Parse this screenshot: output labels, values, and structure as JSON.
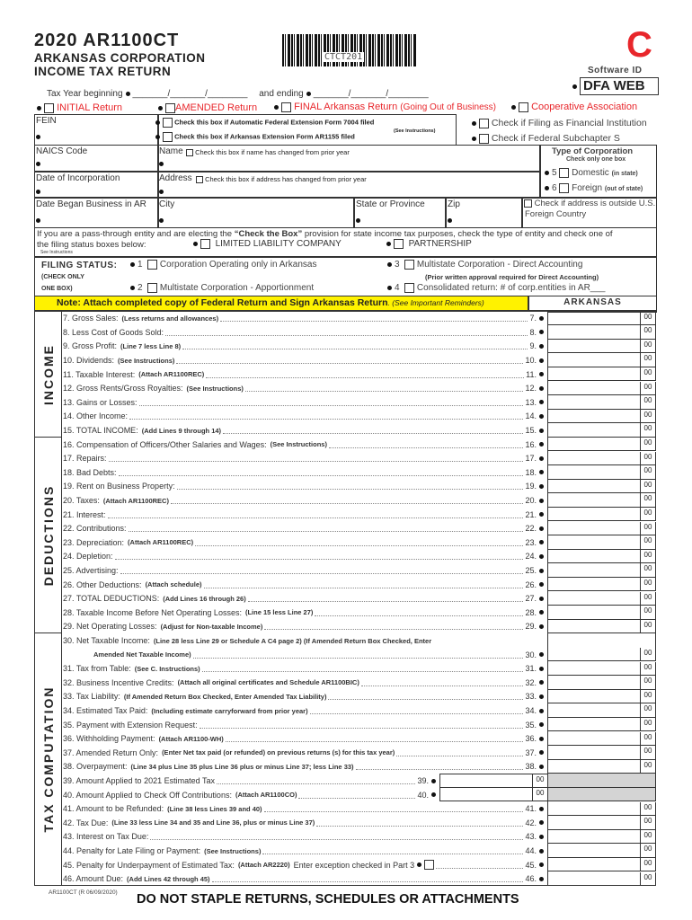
{
  "header": {
    "year_form": "2020 AR1100CT",
    "title1": "ARKANSAS CORPORATION",
    "title2": "INCOME TAX RETURN",
    "barcode_text": "CTCT201",
    "form_letter": "C",
    "software_id_label": "Software ID",
    "software_id": "DFA WEB",
    "tax_year_beginning": "Tax Year beginning",
    "date_blank": "_______/_______/________",
    "and_ending": "and ending"
  },
  "returns": {
    "initial": "INITIAL Return",
    "amended": "AMENDED Return",
    "final": "FINAL Arkansas Return",
    "final_note": "(Going Out of Business)",
    "coop": "Cooperative Association"
  },
  "ident": {
    "fein": "FEIN",
    "ext7004": "Check this box if Automatic Federal Extension Form 7004 filed",
    "see_instr": "(See Instructions)",
    "ext1155": "Check this box if Arkansas Extension Form AR1155 filed",
    "fin_inst": "Check if Filing as Financial Institution",
    "subchapter_s": "Check if Federal Subchapter S",
    "naics": "NAICS Code",
    "name": "Name",
    "name_changed": "Check this box if name has changed from prior year",
    "type_corp": "Type of Corporation",
    "check_one": "Check only one box",
    "n5": "5",
    "domestic": "Domestic",
    "in_state": "(in state)",
    "n6": "6",
    "foreign": "Foreign",
    "out_state": "(out of state)",
    "date_inc": "Date of Incorporation",
    "address": "Address",
    "address_changed": "Check this box if address has changed from prior year",
    "date_began": "Date Began Business in AR",
    "city": "City",
    "state": "State or Province",
    "zip": "Zip",
    "outside_us": "Check if address is outside U.S.",
    "foreign_country": "Foreign Country"
  },
  "passthrough": {
    "text1a": "If you are a pass-through entity and are electing the ",
    "text1b": "“Check the Box”",
    "text1c": " provision for state income tax purposes, check the type of entity and check one of",
    "text2": "the filing status boxes below:",
    "see": "See Instructions",
    "llc": "LIMITED LIABILITY COMPANY",
    "partnership": "PARTNERSHIP"
  },
  "filing": {
    "label": "FILING STATUS:",
    "check_only": "(CHECK ONLY",
    "one_box": "ONE BOX)",
    "o1n": "1",
    "o1": "Corporation Operating only in Arkansas",
    "o2n": "2",
    "o2": "Multistate Corporation - Apportionment",
    "o3n": "3",
    "o3": "Multistate Corporation - Direct Accounting",
    "o3note": "(Prior written approval required for Direct Accounting)",
    "o4n": "4",
    "o4": "Consolidated return: # of corp.entities in AR___"
  },
  "note": {
    "bold": "Note: Attach completed copy of Federal Return and Sign Arkansas Return",
    "italic": ". (See Important Reminders)",
    "arkansas": "ARKANSAS",
    "color": "#fff200"
  },
  "sections": {
    "income": "INCOME",
    "deductions": "DEDUCTIONS",
    "tax": "TAX COMPUTATION"
  },
  "cents": "00",
  "lines": [
    {
      "n": "7",
      "t": "7. Gross Sales:",
      "note": "(Less returns and allowances)"
    },
    {
      "n": "8",
      "t": "8. Less Cost of Goods Sold:",
      "note": ""
    },
    {
      "n": "9",
      "t": "9. Gross Profit:",
      "note": "(Line 7 less Line 8)"
    },
    {
      "n": "10",
      "t": "10. Dividends:",
      "note": "(See Instructions)"
    },
    {
      "n": "11",
      "t": "11. Taxable Interest:",
      "note": "(Attach AR1100REC)"
    },
    {
      "n": "12",
      "t": "12. Gross Rents/Gross Royalties:",
      "note": "(See Instructions)"
    },
    {
      "n": "13",
      "t": "13. Gains or Losses:",
      "note": ""
    },
    {
      "n": "14",
      "t": "14. Other Income:",
      "note": ""
    },
    {
      "n": "15",
      "t": "15. TOTAL INCOME:",
      "note": "(Add Lines 9 through 14)"
    },
    {
      "n": "16",
      "t": "16. Compensation of Officers/Other Salaries and Wages:",
      "note": "(See Instructions)"
    },
    {
      "n": "17",
      "t": "17. Repairs:",
      "note": ""
    },
    {
      "n": "18",
      "t": "18. Bad Debts:",
      "note": ""
    },
    {
      "n": "19",
      "t": "19. Rent on Business Property:",
      "note": ""
    },
    {
      "n": "20",
      "t": "20. Taxes:",
      "note": "(Attach AR1100REC)"
    },
    {
      "n": "21",
      "t": "21. Interest:",
      "note": ""
    },
    {
      "n": "22",
      "t": "22. Contributions:",
      "note": ""
    },
    {
      "n": "23",
      "t": "23. Depreciation:",
      "note": "(Attach AR1100REC)"
    },
    {
      "n": "24",
      "t": "24. Depletion:",
      "note": ""
    },
    {
      "n": "25",
      "t": "25. Advertising:",
      "note": ""
    },
    {
      "n": "26",
      "t": "26. Other Deductions:",
      "note": "(Attach schedule)"
    },
    {
      "n": "27",
      "t": "27. TOTAL DEDUCTIONS:",
      "note": "(Add Lines 16 through 26)"
    },
    {
      "n": "28",
      "t": "28. Taxable Income Before Net Operating Losses:",
      "note": "(Line 15 less Line 27)"
    },
    {
      "n": "29",
      "t": "29. Net Operating Losses:",
      "note": "(Adjust for Non-taxable Income)"
    },
    {
      "n": "30",
      "t": "30. Net Taxable Income:",
      "note": "(Line 28 less Line 29 or Schedule A C4 page 2)   (If Amended Return Box Checked, Enter",
      "cont": "Amended Net Taxable Income)"
    },
    {
      "n": "31",
      "t": "31. Tax from Table:",
      "note": "(See C. Instructions)"
    },
    {
      "n": "32",
      "t": "32. Business Incentive Credits:",
      "note": "(Attach all original certificates and Schedule AR1100BIC)"
    },
    {
      "n": "33",
      "t": "33. Tax Liability:",
      "note": "(If Amended Return Box Checked, Enter Amended Tax Liability)"
    },
    {
      "n": "34",
      "t": "34. Estimated Tax Paid:",
      "note": "(Including estimate carryforward from prior year)"
    },
    {
      "n": "35",
      "t": "35. Payment with Extension Request:",
      "note": ""
    },
    {
      "n": "36",
      "t": "36. Withholding Payment:",
      "note": "(Attach AR1100-WH)"
    },
    {
      "n": "37",
      "t": "37. Amended Return Only:",
      "note": "(Enter Net tax paid (or refunded) on previous returns (s) for this tax year)"
    },
    {
      "n": "38",
      "t": "38. Overpayment:",
      "note": "(Line 34 plus Line 35 plus Line 36 plus or minus Line 37; less Line 33)"
    },
    {
      "n": "39",
      "t": "39. Amount Applied to 2021 Estimated Tax",
      "note": "",
      "short": true
    },
    {
      "n": "40",
      "t": "40. Amount Applied to Check Off Contributions:",
      "note": "(Attach AR1100CO)",
      "short": true
    },
    {
      "n": "41",
      "t": "41. Amount to be Refunded:",
      "note": "(Line 38 less Lines 39 and 40)"
    },
    {
      "n": "42",
      "t": "42. Tax Due:",
      "note": "(Line 33 less Line 34 and 35 and Line 36, plus or minus Line 37)"
    },
    {
      "n": "43",
      "t": "43. Interest on Tax Due:",
      "note": ""
    },
    {
      "n": "44",
      "t": "44. Penalty for Late Filing or Payment:",
      "note": "(See Instructions)"
    },
    {
      "n": "45",
      "t": "45. Penalty for Underpayment of Estimated Tax:",
      "note": "(Attach AR2220)",
      "extra": "Enter exception checked in Part 3",
      "check": true
    },
    {
      "n": "46",
      "t": "46. Amount Due:",
      "note": "(Add Lines 42 through 45)"
    }
  ],
  "footer": {
    "rev": "AR1100CT (R 06/09/2020)",
    "staple": "DO NOT STAPLE RETURNS, SCHEDULES OR ATTACHMENTS"
  }
}
